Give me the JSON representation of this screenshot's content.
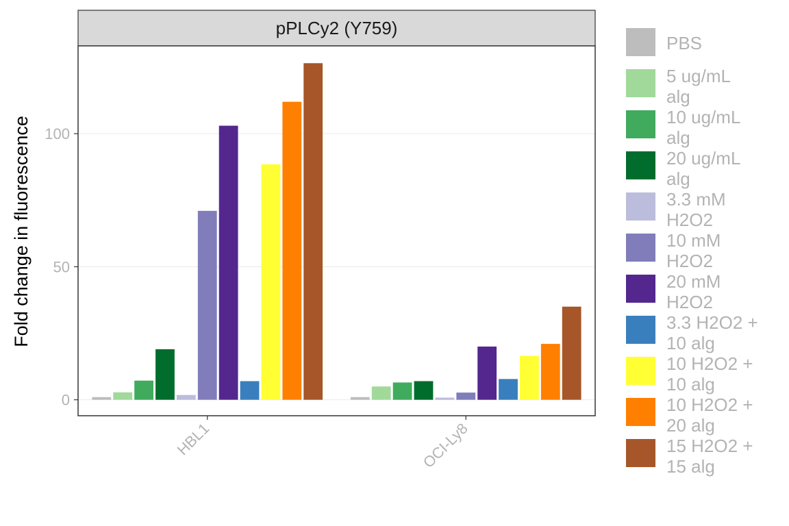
{
  "chart_data": {
    "type": "bar",
    "title": "",
    "facet_label": "pPLCy2 (Y759)",
    "xlabel": "",
    "ylabel": "Fold change in fluorescence",
    "ylim": [
      -6,
      133
    ],
    "yticks": [
      0,
      50,
      100
    ],
    "grid": true,
    "legend_position": "right",
    "categories": [
      "HBL1",
      "OCI-Ly8"
    ],
    "series": [
      {
        "name": "PBS",
        "color": "#bdbdbd",
        "values": [
          1.0,
          1.0
        ]
      },
      {
        "name": "5 ug/mL alg",
        "color": "#a1d99b",
        "values": [
          2.8,
          5.0
        ]
      },
      {
        "name": "10 ug/mL alg",
        "color": "#41ab5d",
        "values": [
          7.2,
          6.5
        ]
      },
      {
        "name": "20 ug/mL alg",
        "color": "#006d2c",
        "values": [
          19.0,
          7.0
        ]
      },
      {
        "name": "3.3 mM H2O2",
        "color": "#bcbddc",
        "values": [
          1.8,
          0.8
        ]
      },
      {
        "name": "10 mM H2O2",
        "color": "#807dba",
        "values": [
          71.0,
          2.7
        ]
      },
      {
        "name": "20 mM H2O2",
        "color": "#54278f",
        "values": [
          103.0,
          20.0
        ]
      },
      {
        "name": "3.3 H2O2 + 10 alg",
        "color": "#3a7fbd",
        "values": [
          7.0,
          7.8
        ]
      },
      {
        "name": "10 H2O2 + 10 alg",
        "color": "#ffff33",
        "values": [
          88.5,
          16.5
        ]
      },
      {
        "name": "10 H2O2 + 20 alg",
        "color": "#ff7f00",
        "values": [
          112.0,
          21.0
        ]
      },
      {
        "name": "15 H2O2 + 15 alg",
        "color": "#a65628",
        "values": [
          126.5,
          35.0
        ]
      }
    ],
    "legend": [
      {
        "line1": "PBS",
        "line2": ""
      },
      {
        "line1": "5 ug/mL",
        "line2": "alg"
      },
      {
        "line1": "10 ug/mL",
        "line2": "alg"
      },
      {
        "line1": "20 ug/mL",
        "line2": "alg"
      },
      {
        "line1": "3.3 mM",
        "line2": "H2O2"
      },
      {
        "line1": "10 mM",
        "line2": "H2O2"
      },
      {
        "line1": "20 mM",
        "line2": "H2O2"
      },
      {
        "line1": "3.3 H2O2 +",
        "line2": "10 alg"
      },
      {
        "line1": "10 H2O2 +",
        "line2": "10 alg"
      },
      {
        "line1": "10 H2O2 +",
        "line2": "20 alg"
      },
      {
        "line1": "15 H2O2 +",
        "line2": "15 alg"
      }
    ]
  }
}
